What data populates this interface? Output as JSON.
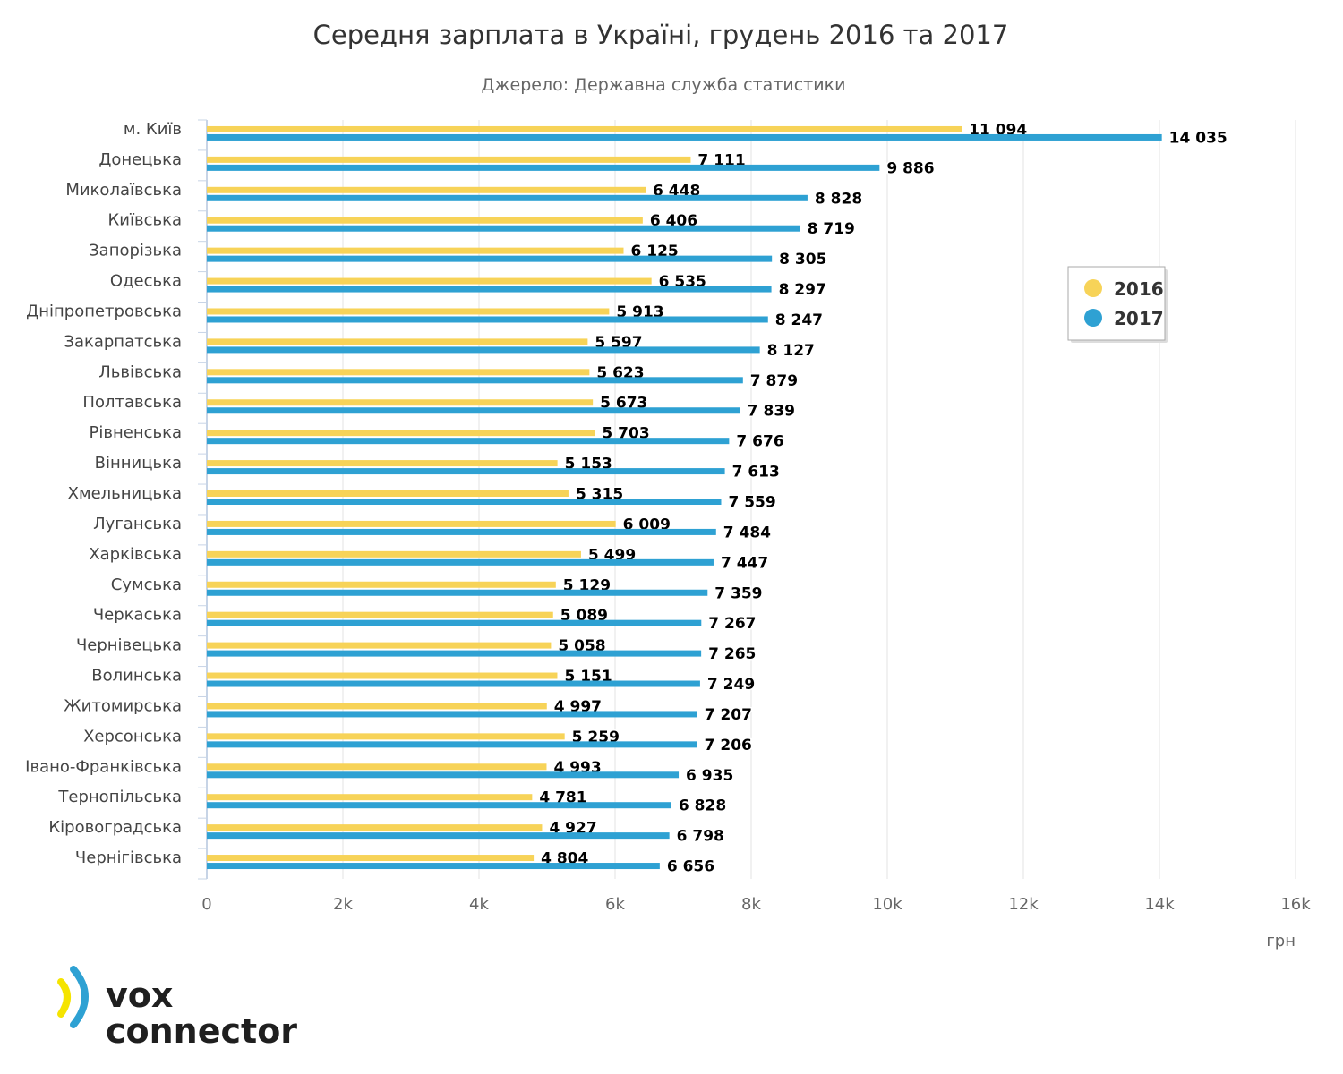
{
  "chart_data": {
    "type": "bar",
    "orientation": "horizontal",
    "title": "Середня зарплата в Україні, грудень 2016 та 2017",
    "subtitle": "Джерело: Державна служба статистики",
    "xlabel": "грн",
    "xlim": [
      0,
      16000
    ],
    "x_ticks": [
      "0",
      "2k",
      "4k",
      "6k",
      "8k",
      "10k",
      "12k",
      "14k",
      "16k"
    ],
    "x_tick_values": [
      0,
      2000,
      4000,
      6000,
      8000,
      10000,
      12000,
      14000,
      16000
    ],
    "grid": true,
    "legend_position": "right",
    "categories": [
      "м. Київ",
      "Донецька",
      "Миколаївська",
      "Київська",
      "Запорізька",
      "Одеська",
      "Дніпропетровська",
      "Закарпатська",
      "Львівська",
      "Полтавська",
      "Рівненська",
      "Вінницька",
      "Хмельницька",
      "Луганська",
      "Харківська",
      "Сумська",
      "Черкаська",
      "Чернівецька",
      "Волинська",
      "Житомирська",
      "Херсонська",
      "Івано-Франківська",
      "Тернопільська",
      "Кіровоградська",
      "Чернігівська"
    ],
    "series": [
      {
        "name": "2016",
        "color": "#F7D358",
        "values": [
          11094,
          7111,
          6448,
          6406,
          6125,
          6535,
          5913,
          5597,
          5623,
          5673,
          5703,
          5153,
          5315,
          6009,
          5499,
          5129,
          5089,
          5058,
          5151,
          4997,
          5259,
          4993,
          4781,
          4927,
          4804
        ],
        "labels": [
          "11 094",
          "7 111",
          "6 448",
          "6 406",
          "6 125",
          "6 535",
          "5 913",
          "5 597",
          "5 623",
          "5 673",
          "5 703",
          "5 153",
          "5 315",
          "6 009",
          "5 499",
          "5 129",
          "5 089",
          "5 058",
          "5 151",
          "4 997",
          "5 259",
          "4 993",
          "4 781",
          "4 927",
          "4 804"
        ]
      },
      {
        "name": "2017",
        "color": "#2EA1D3",
        "values": [
          14035,
          9886,
          8828,
          8719,
          8305,
          8297,
          8247,
          8127,
          7879,
          7839,
          7676,
          7613,
          7559,
          7484,
          7447,
          7359,
          7267,
          7265,
          7249,
          7207,
          7206,
          6935,
          6828,
          6798,
          6656
        ],
        "labels": [
          "14 035",
          "9 886",
          "8 828",
          "8 719",
          "8 305",
          "8 297",
          "8 247",
          "8 127",
          "7 879",
          "7 839",
          "7 676",
          "7 613",
          "7 559",
          "7 484",
          "7 447",
          "7 359",
          "7 267",
          "7 265",
          "7 249",
          "7 207",
          "7 206",
          "6 935",
          "6 828",
          "6 798",
          "6 656"
        ]
      }
    ]
  },
  "logo": {
    "line1": "vox",
    "line2": "connector",
    "colors": {
      "yellow": "#F5E400",
      "blue": "#2EA1D3"
    }
  }
}
